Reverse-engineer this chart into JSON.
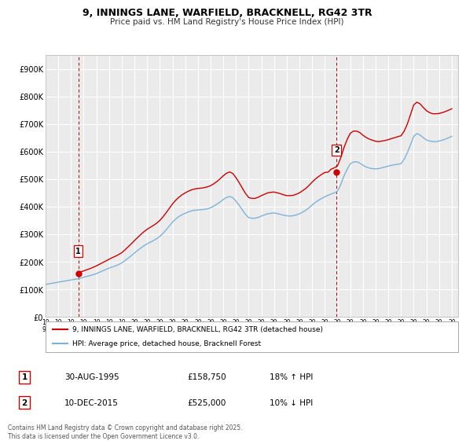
{
  "title": "9, INNINGS LANE, WARFIELD, BRACKNELL, RG42 3TR",
  "subtitle": "Price paid vs. HM Land Registry's House Price Index (HPI)",
  "ylim": [
    0,
    950000
  ],
  "yticks": [
    0,
    100000,
    200000,
    300000,
    400000,
    500000,
    600000,
    700000,
    800000,
    900000
  ],
  "ytick_labels": [
    "£0",
    "£100K",
    "£200K",
    "£300K",
    "£400K",
    "£500K",
    "£600K",
    "£700K",
    "£800K",
    "£900K"
  ],
  "bg_color": "#ebebeb",
  "grid_color": "#ffffff",
  "hpi_color": "#7eb3d8",
  "price_color": "#cc0000",
  "sale1_label": "1",
  "sale1_date": "30-AUG-1995",
  "sale1_price": "£158,750",
  "sale1_hpi": "18% ↑ HPI",
  "sale2_label": "2",
  "sale2_date": "10-DEC-2015",
  "sale2_price": "£525,000",
  "sale2_hpi": "10% ↓ HPI",
  "legend_line1": "9, INNINGS LANE, WARFIELD, BRACKNELL, RG42 3TR (detached house)",
  "legend_line2": "HPI: Average price, detached house, Bracknell Forest",
  "footer": "Contains HM Land Registry data © Crown copyright and database right 2025.\nThis data is licensed under the Open Government Licence v3.0.",
  "hpi_dates": [
    1993.0,
    1993.25,
    1993.5,
    1993.75,
    1994.0,
    1994.25,
    1994.5,
    1994.75,
    1995.0,
    1995.25,
    1995.5,
    1995.75,
    1996.0,
    1996.25,
    1996.5,
    1996.75,
    1997.0,
    1997.25,
    1997.5,
    1997.75,
    1998.0,
    1998.25,
    1998.5,
    1998.75,
    1999.0,
    1999.25,
    1999.5,
    1999.75,
    2000.0,
    2000.25,
    2000.5,
    2000.75,
    2001.0,
    2001.25,
    2001.5,
    2001.75,
    2002.0,
    2002.25,
    2002.5,
    2002.75,
    2003.0,
    2003.25,
    2003.5,
    2003.75,
    2004.0,
    2004.25,
    2004.5,
    2004.75,
    2005.0,
    2005.25,
    2005.5,
    2005.75,
    2006.0,
    2006.25,
    2006.5,
    2006.75,
    2007.0,
    2007.25,
    2007.5,
    2007.75,
    2008.0,
    2008.25,
    2008.5,
    2008.75,
    2009.0,
    2009.25,
    2009.5,
    2009.75,
    2010.0,
    2010.25,
    2010.5,
    2010.75,
    2011.0,
    2011.25,
    2011.5,
    2011.75,
    2012.0,
    2012.25,
    2012.5,
    2012.75,
    2013.0,
    2013.25,
    2013.5,
    2013.75,
    2014.0,
    2014.25,
    2014.5,
    2014.75,
    2015.0,
    2015.25,
    2015.5,
    2015.75,
    2016.0,
    2016.25,
    2016.5,
    2016.75,
    2017.0,
    2017.25,
    2017.5,
    2017.75,
    2018.0,
    2018.25,
    2018.5,
    2018.75,
    2019.0,
    2019.25,
    2019.5,
    2019.75,
    2020.0,
    2020.25,
    2020.5,
    2020.75,
    2021.0,
    2021.25,
    2021.5,
    2021.75,
    2022.0,
    2022.25,
    2022.5,
    2022.75,
    2023.0,
    2023.25,
    2023.5,
    2023.75,
    2024.0,
    2024.25,
    2024.5,
    2024.75,
    2025.0
  ],
  "hpi_values": [
    118000,
    120000,
    122000,
    124000,
    126000,
    128000,
    130000,
    132000,
    134000,
    136000,
    138000,
    141000,
    144000,
    147000,
    150000,
    153000,
    157000,
    162000,
    167000,
    172000,
    177000,
    181000,
    185000,
    190000,
    196000,
    204000,
    213000,
    222000,
    232000,
    241000,
    250000,
    258000,
    265000,
    271000,
    277000,
    284000,
    292000,
    303000,
    316000,
    330000,
    344000,
    355000,
    364000,
    371000,
    376000,
    381000,
    385000,
    387000,
    388000,
    389000,
    390000,
    392000,
    396000,
    402000,
    409000,
    417000,
    426000,
    433000,
    437000,
    432000,
    420000,
    405000,
    388000,
    372000,
    360000,
    358000,
    358000,
    361000,
    366000,
    370000,
    374000,
    376000,
    377000,
    375000,
    372000,
    369000,
    367000,
    366000,
    367000,
    370000,
    374000,
    380000,
    387000,
    396000,
    406000,
    415000,
    423000,
    430000,
    436000,
    441000,
    446000,
    450000,
    456000,
    480000,
    510000,
    535000,
    555000,
    562000,
    563000,
    558000,
    550000,
    544000,
    540000,
    538000,
    537000,
    538000,
    541000,
    544000,
    547000,
    550000,
    552000,
    554000,
    556000,
    572000,
    596000,
    625000,
    655000,
    665000,
    660000,
    650000,
    642000,
    638000,
    636000,
    636000,
    638000,
    641000,
    645000,
    650000,
    655000
  ],
  "price_dates": [
    1993.0,
    1993.25,
    1993.5,
    1993.75,
    1994.0,
    1994.25,
    1994.5,
    1994.75,
    1995.0,
    1995.25,
    1995.5,
    1995.75,
    1996.0,
    1996.25,
    1996.5,
    1996.75,
    1997.0,
    1997.25,
    1997.5,
    1997.75,
    1998.0,
    1998.25,
    1998.5,
    1998.75,
    1999.0,
    1999.25,
    1999.5,
    1999.75,
    2000.0,
    2000.25,
    2000.5,
    2000.75,
    2001.0,
    2001.25,
    2001.5,
    2001.75,
    2002.0,
    2002.25,
    2002.5,
    2002.75,
    2003.0,
    2003.25,
    2003.5,
    2003.75,
    2004.0,
    2004.25,
    2004.5,
    2004.75,
    2005.0,
    2005.25,
    2005.5,
    2005.75,
    2006.0,
    2006.25,
    2006.5,
    2006.75,
    2007.0,
    2007.25,
    2007.5,
    2007.75,
    2008.0,
    2008.25,
    2008.5,
    2008.75,
    2009.0,
    2009.25,
    2009.5,
    2009.75,
    2010.0,
    2010.25,
    2010.5,
    2010.75,
    2011.0,
    2011.25,
    2011.5,
    2011.75,
    2012.0,
    2012.25,
    2012.5,
    2012.75,
    2013.0,
    2013.25,
    2013.5,
    2013.75,
    2014.0,
    2014.25,
    2014.5,
    2014.75,
    2015.0,
    2015.25,
    2015.5,
    2015.75,
    2016.0,
    2016.25,
    2016.5,
    2016.75,
    2017.0,
    2017.25,
    2017.5,
    2017.75,
    2018.0,
    2018.25,
    2018.5,
    2018.75,
    2019.0,
    2019.25,
    2019.5,
    2019.75,
    2020.0,
    2020.25,
    2020.5,
    2020.75,
    2021.0,
    2021.25,
    2021.5,
    2021.75,
    2022.0,
    2022.25,
    2022.5,
    2022.75,
    2023.0,
    2023.25,
    2023.5,
    2023.75,
    2024.0,
    2024.25,
    2024.5,
    2024.75,
    2025.0
  ],
  "price_values": [
    null,
    null,
    null,
    null,
    null,
    null,
    null,
    null,
    null,
    null,
    158750,
    163000,
    167000,
    171000,
    175000,
    180000,
    185000,
    191000,
    197000,
    203000,
    209000,
    215000,
    220000,
    226000,
    233000,
    243000,
    254000,
    265000,
    277000,
    288000,
    299000,
    309000,
    318000,
    325000,
    332000,
    340000,
    350000,
    363000,
    378000,
    394000,
    410000,
    423000,
    434000,
    443000,
    450000,
    456000,
    461000,
    464000,
    466000,
    467000,
    469000,
    472000,
    476000,
    483000,
    491000,
    501000,
    512000,
    521000,
    526000,
    520000,
    505000,
    487000,
    467000,
    448000,
    433000,
    430000,
    430000,
    434000,
    440000,
    445000,
    450000,
    452000,
    453000,
    450000,
    447000,
    443000,
    440000,
    440000,
    441000,
    445000,
    450000,
    458000,
    466000,
    477000,
    489000,
    500000,
    509000,
    517000,
    524000,
    525000,
    536000,
    541000,
    548000,
    577000,
    613000,
    643000,
    666000,
    674000,
    674000,
    669000,
    659000,
    651000,
    645000,
    641000,
    637000,
    636000,
    638000,
    640000,
    643000,
    647000,
    650000,
    654000,
    657000,
    674000,
    700000,
    734000,
    769000,
    779000,
    773000,
    760000,
    748000,
    741000,
    737000,
    737000,
    738000,
    741000,
    745000,
    750000,
    755000
  ],
  "sale1_x": 1995.58,
  "sale1_y": 158750,
  "sale2_x": 2015.92,
  "sale2_y": 525000,
  "vline1_x": 1995.58,
  "vline2_x": 2015.92,
  "xlim_left": 1993.0,
  "xlim_right": 2025.5,
  "xtick_years": [
    1993,
    1994,
    1995,
    1996,
    1997,
    1998,
    1999,
    2000,
    2001,
    2002,
    2003,
    2004,
    2005,
    2006,
    2007,
    2008,
    2009,
    2010,
    2011,
    2012,
    2013,
    2014,
    2015,
    2016,
    2017,
    2018,
    2019,
    2020,
    2021,
    2022,
    2023,
    2024,
    2025
  ]
}
